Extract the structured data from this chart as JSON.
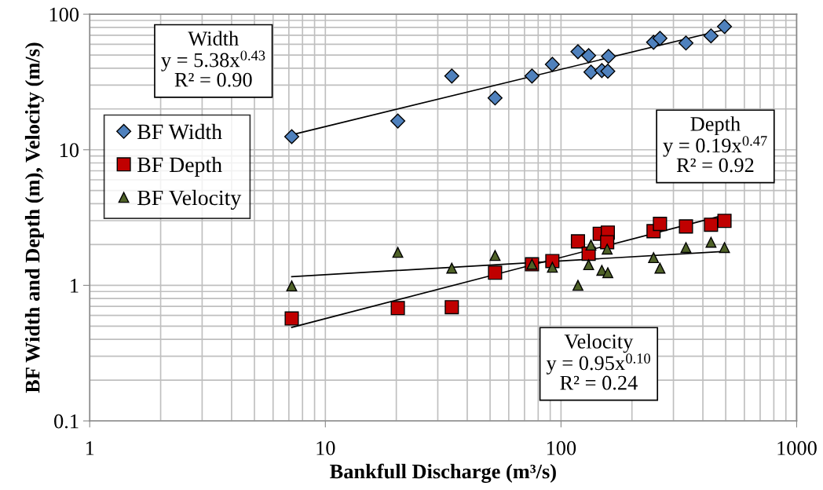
{
  "chart_data": {
    "type": "scatter",
    "xlabel": "Bankfull Discharge (m³/s)",
    "ylabel": "BF Width and Depth (m), Velocity (m/s)",
    "log": "xy",
    "grid": true,
    "legend": "center left",
    "xlim": [
      1,
      1000
    ],
    "xticks": [
      1,
      10,
      100,
      1000
    ],
    "ylim": [
      0.1,
      100
    ],
    "yticks": [
      0.1,
      1,
      10,
      100
    ],
    "series": [
      {
        "name": "BF Width",
        "color": "#4f81bd",
        "marker": "diamond",
        "x": [
          7.2,
          20.3,
          34.4,
          52.5,
          75.3,
          91.9,
          118,
          131,
          134,
          149,
          158,
          159,
          247,
          263,
          339,
          433,
          494
        ],
        "values": [
          12.5,
          16.3,
          35,
          24.1,
          35,
          42.7,
          52.9,
          49.5,
          37.4,
          38.4,
          38,
          48.9,
          62.1,
          66.4,
          61.3,
          69.2,
          81.1
        ]
      },
      {
        "name": "BF Depth",
        "color": "#c00000",
        "marker": "square",
        "x": [
          7.2,
          20.3,
          34.4,
          52.5,
          75.3,
          91.9,
          118,
          131,
          146,
          158,
          157,
          247,
          263,
          339,
          433,
          494
        ],
        "values": [
          0.57,
          0.68,
          0.69,
          1.24,
          1.43,
          1.51,
          2.11,
          1.71,
          2.4,
          2.45,
          2.08,
          2.51,
          2.84,
          2.72,
          2.8,
          2.99
        ]
      },
      {
        "name": "BF Velocity",
        "color": "#4f6228",
        "marker": "triangle",
        "x": [
          7.2,
          20.3,
          34.4,
          52.5,
          75.3,
          91.9,
          118,
          131,
          134,
          149,
          158,
          157,
          247,
          263,
          339,
          433,
          494
        ],
        "values": [
          0.99,
          1.75,
          1.34,
          1.66,
          1.43,
          1.36,
          1.0,
          1.42,
          1.98,
          1.29,
          1.24,
          1.85,
          1.6,
          1.34,
          1.9,
          2.08,
          1.9
        ]
      },
      {
        "type": "line",
        "color": "#000000",
        "marker": "none",
        "x": [
          7.2,
          494
        ],
        "values": [
          12.9,
          77
        ]
      },
      {
        "type": "line",
        "color": "#000000",
        "marker": "none",
        "x": [
          7.2,
          494
        ],
        "values": [
          0.49,
          3.3
        ]
      },
      {
        "type": "line",
        "color": "#000000",
        "marker": "none",
        "x": [
          7.2,
          494
        ],
        "values": [
          1.16,
          1.78
        ]
      }
    ],
    "annotations": [
      "Width\ny = 5.38x$^{0.43}$\nR² = 0.90",
      "Depth\ny = 0.19x$^{0.47}$\nR² = 0.92",
      "Velocity\ny = 0.95x$^{0.10}$\nR² = 0.24"
    ]
  }
}
